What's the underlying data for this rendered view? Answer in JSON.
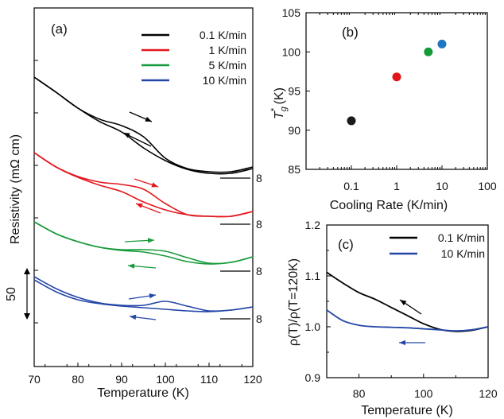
{
  "chart_data": [
    {
      "panel": "(a)",
      "type": "line",
      "xlabel": "Temperature (K)",
      "ylabel": "Resistivity (mΩ cm)",
      "xlim": [
        70,
        120
      ],
      "x_ticks": [
        70,
        80,
        90,
        100,
        110,
        120
      ],
      "scale_bar_label": "50",
      "offset_labels": [
        "8",
        "8",
        "8",
        "8"
      ],
      "legend_position": "top-right",
      "series": [
        {
          "name": "0.1 K/min",
          "color": "#000000",
          "cooling": {
            "x": [
              70,
              75,
              80,
              85,
              90,
              95,
              100,
              105,
              110,
              115,
              120
            ],
            "y": [
              97,
              116,
              136,
              153,
              166,
              186,
              202,
              213,
              218,
              218,
              212
            ]
          },
          "warming": {
            "x": [
              70,
              75,
              80,
              85,
              90,
              95,
              100,
              105,
              110,
              115,
              120
            ],
            "y": [
              97,
              116,
              136,
              150,
              158,
              172,
              199,
              212,
              216,
              216,
              210
            ]
          }
        },
        {
          "name": "1 K/min",
          "color": "#e3161b",
          "cooling": {
            "x": [
              70,
              75,
              80,
              85,
              90,
              95,
              100,
              105,
              110,
              115,
              120
            ],
            "y": [
              192,
              210,
              223,
              233,
              241,
              254,
              264,
              270,
              272,
              272,
              266
            ]
          },
          "warming": {
            "x": [
              70,
              75,
              80,
              85,
              90,
              95,
              100,
              105,
              110,
              115,
              120
            ],
            "y": [
              192,
              210,
              222,
              229,
              232,
              238,
              256,
              270,
              272,
              272,
              266
            ]
          }
        },
        {
          "name": "5 K/min",
          "color": "#159a3a",
          "cooling": {
            "x": [
              70,
              75,
              80,
              85,
              90,
              95,
              100,
              105,
              110,
              115,
              120
            ],
            "y": [
              279,
              294,
              304,
              311,
              315,
              317,
              322,
              329,
              332,
              330,
              323
            ]
          },
          "warming": {
            "x": [
              70,
              75,
              80,
              85,
              90,
              95,
              100,
              105,
              110,
              115,
              120
            ],
            "y": [
              279,
              294,
              304,
              311,
              314,
              314,
              316,
              324,
              331,
              330,
              323
            ]
          }
        },
        {
          "name": "10 K/min",
          "color": "#2346a7",
          "cooling": {
            "x": [
              70,
              75,
              80,
              85,
              90,
              95,
              100,
              105,
              110,
              115,
              120
            ],
            "y": [
              352,
              367,
              377,
              382,
              385,
              387,
              389,
              391,
              392,
              390,
              386
            ]
          },
          "warming": {
            "x": [
              70,
              75,
              80,
              85,
              90,
              95,
              100,
              105,
              110,
              115,
              120
            ],
            "y": [
              348,
              363,
              374,
              381,
              384,
              384,
              379,
              385,
              391,
              390,
              386
            ]
          }
        }
      ]
    },
    {
      "panel": "(b)",
      "type": "scatter",
      "xlabel": "Cooling Rate (K/min)",
      "ylabel": "T*g (K)",
      "x_scale": "log",
      "xlim": [
        0.01,
        100
      ],
      "ylim": [
        85,
        105
      ],
      "x_tick_labels": [
        "0.1",
        "1",
        "10",
        "100"
      ],
      "y_ticks": [
        85,
        90,
        95,
        100,
        105
      ],
      "points": [
        {
          "x": 0.1,
          "y": 91.2,
          "color": "#1a1a1a"
        },
        {
          "x": 1,
          "y": 96.8,
          "color": "#e3161b"
        },
        {
          "x": 5,
          "y": 100.0,
          "color": "#159a3a"
        },
        {
          "x": 10,
          "y": 101.0,
          "color": "#1f77c0"
        }
      ]
    },
    {
      "panel": "(c)",
      "type": "line",
      "xlabel": "Temperature (K)",
      "ylabel": "ρ(T)/ρ(T=120K)",
      "xlim": [
        70,
        120
      ],
      "ylim": [
        0.9,
        1.2
      ],
      "x_ticks": [
        80,
        100,
        120
      ],
      "y_ticks": [
        0.9,
        1.0,
        1.1,
        1.2
      ],
      "legend_position": "top-right",
      "series": [
        {
          "name": "0.1 K/min",
          "color": "#000000",
          "x": [
            70,
            75,
            80,
            85,
            90,
            95,
            100,
            105,
            110,
            115,
            120
          ],
          "y": [
            1.107,
            1.086,
            1.067,
            1.054,
            1.038,
            1.022,
            1.006,
            0.995,
            0.991,
            0.993,
            1.0
          ]
        },
        {
          "name": "10 K/min",
          "color": "#2346a7",
          "x": [
            70,
            75,
            80,
            85,
            90,
            95,
            100,
            105,
            110,
            115,
            120
          ],
          "y": [
            1.033,
            1.012,
            1.003,
            1.0,
            0.999,
            0.998,
            0.996,
            0.994,
            0.992,
            0.994,
            1.0
          ]
        }
      ]
    }
  ]
}
